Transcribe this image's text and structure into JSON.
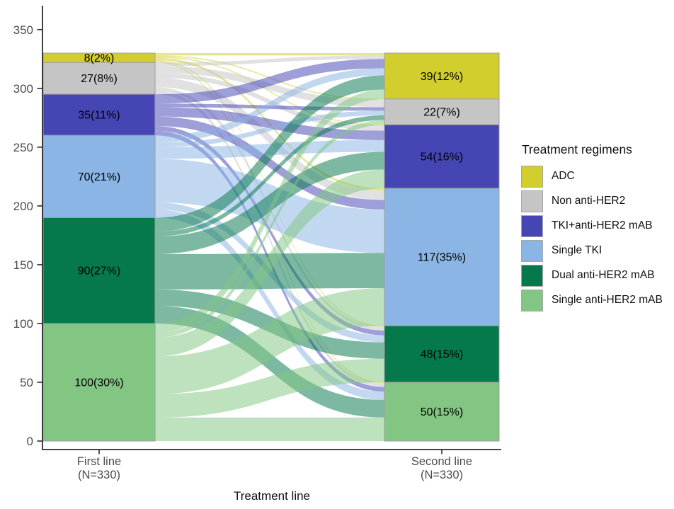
{
  "legend": {
    "title": "Treatment regimens",
    "items": [
      {
        "label": "ADC",
        "color": "#d1ce2d"
      },
      {
        "label": "Non anti-HER2",
        "color": "#c5c5c5"
      },
      {
        "label": "TKI+anti-HER2 mAB",
        "color": "#4545b4"
      },
      {
        "label": "Single TKI",
        "color": "#8ab5e4"
      },
      {
        "label": "Dual anti-HER2 mAB",
        "color": "#05784c"
      },
      {
        "label": "Single anti-HER2 mAB",
        "color": "#83c683"
      }
    ]
  },
  "axes": {
    "y_ticks": [
      0,
      50,
      100,
      150,
      200,
      250,
      300,
      350
    ],
    "x_title": "Treatment line",
    "x_categories": [
      {
        "label": "First line",
        "sub": "(N=330)"
      },
      {
        "label": "Second line",
        "sub": "(N=330)"
      }
    ]
  },
  "chart_data": {
    "type": "alluvial",
    "title": "",
    "xlabel": "Treatment line",
    "ylabel": "",
    "ylim": [
      0,
      350
    ],
    "grid": false,
    "legend_position": "right",
    "categories": [
      "First line (N=330)",
      "Second line (N=330)"
    ],
    "regimens": [
      "ADC",
      "Non anti-HER2",
      "TKI+anti-HER2 mAB",
      "Single TKI",
      "Dual anti-HER2 mAB",
      "Single anti-HER2 mAB"
    ],
    "colors": [
      "#d1ce2d",
      "#c5c5c5",
      "#4545b4",
      "#8ab5e4",
      "#05784c",
      "#83c683"
    ],
    "first_line": {
      "total": 330,
      "counts": [
        8,
        27,
        35,
        70,
        90,
        100
      ],
      "labels": [
        "8(2%)",
        "27(8%)",
        "35(11%)",
        "70(21%)",
        "90(27%)",
        "100(30%)"
      ]
    },
    "second_line": {
      "total": 330,
      "counts": [
        39,
        22,
        54,
        117,
        48,
        50
      ],
      "labels": [
        "39(12%)",
        "22(7%)",
        "54(16%)",
        "117(35%)",
        "48(15%)",
        "50(15%)"
      ]
    },
    "flows": [
      [
        2,
        1,
        1,
        2,
        1,
        1
      ],
      [
        3,
        6,
        4,
        8,
        3,
        3
      ],
      [
        8,
        3,
        8,
        8,
        4,
        4
      ],
      [
        6,
        4,
        10,
        37,
        6,
        7
      ],
      [
        12,
        4,
        15,
        30,
        14,
        15
      ],
      [
        8,
        4,
        16,
        32,
        20,
        20
      ]
    ],
    "flow_opacity": 0.52
  }
}
